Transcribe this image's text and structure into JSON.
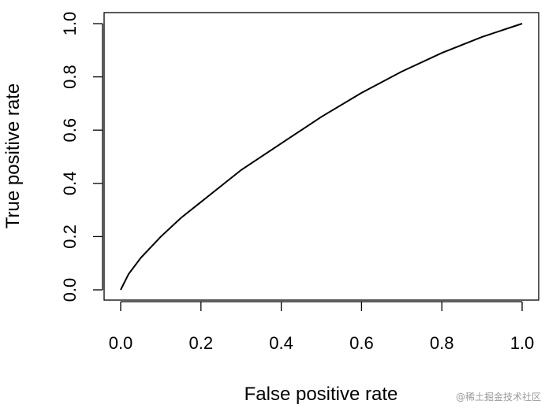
{
  "chart_data": {
    "type": "line",
    "title": "",
    "xlabel": "False positive rate",
    "ylabel": "True positive rate",
    "xlim": [
      0.0,
      1.0
    ],
    "ylim": [
      0.0,
      1.0
    ],
    "x_ticks": [
      "0.0",
      "0.2",
      "0.4",
      "0.6",
      "0.8",
      "1.0"
    ],
    "y_ticks": [
      "0.0",
      "0.2",
      "0.4",
      "0.6",
      "0.8",
      "1.0"
    ],
    "grid": false,
    "legend": "none",
    "line_color": "#000000",
    "series": [
      {
        "x": [
          0.0,
          0.02,
          0.05,
          0.1,
          0.15,
          0.2,
          0.3,
          0.4,
          0.5,
          0.6,
          0.7,
          0.8,
          0.9,
          1.0
        ],
        "y": [
          0.0,
          0.06,
          0.12,
          0.2,
          0.27,
          0.33,
          0.45,
          0.55,
          0.65,
          0.74,
          0.82,
          0.89,
          0.95,
          1.0
        ]
      }
    ]
  },
  "watermark": "@稀土掘金技术社区"
}
